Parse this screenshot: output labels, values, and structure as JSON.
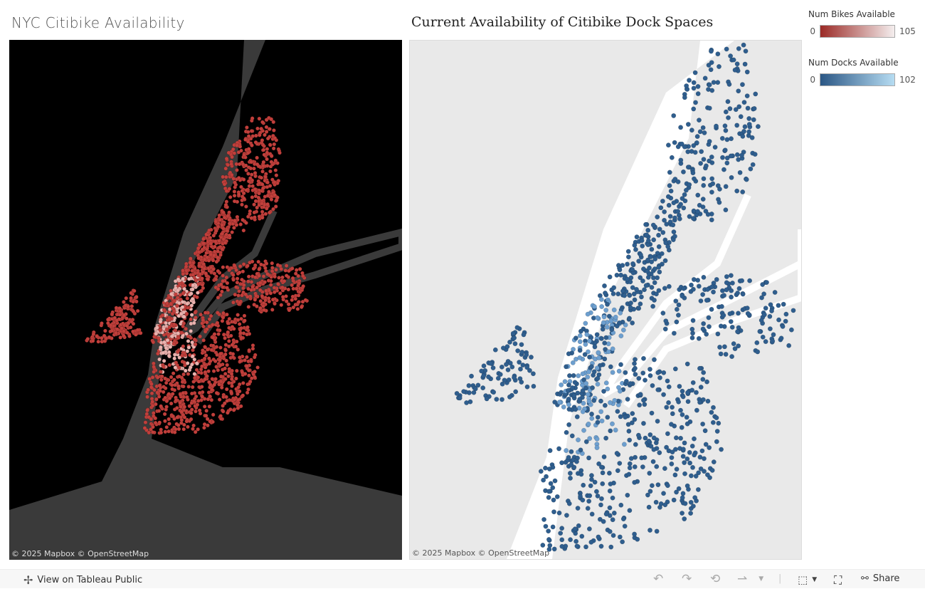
{
  "dashboard": {
    "left_title": "NYC Citibike Availability",
    "right_title": "Current Availability of Citibike Dock Spaces"
  },
  "maps": {
    "attribution": "© 2025 Mapbox  © OpenStreetMap",
    "left_dot_color": "#c13f3b",
    "right_dot_color": "#2f5e8e"
  },
  "legends": {
    "bikes": {
      "title": "Num Bikes Available",
      "min": "0",
      "max": "105",
      "color_low": "#9b2a26",
      "color_high": "#f4eeee"
    },
    "docks": {
      "title": "Num Docks Available",
      "min": "0",
      "max": "102",
      "color_low": "#2b5785",
      "color_high": "#b6dcf2"
    }
  },
  "toolbar": {
    "view_label": "View on Tableau Public",
    "share_label": "Share",
    "icons": [
      "undo-icon",
      "redo-icon",
      "revert-icon",
      "refresh-icon",
      "download-icon",
      "fullscreen-icon",
      "share-icon"
    ]
  }
}
